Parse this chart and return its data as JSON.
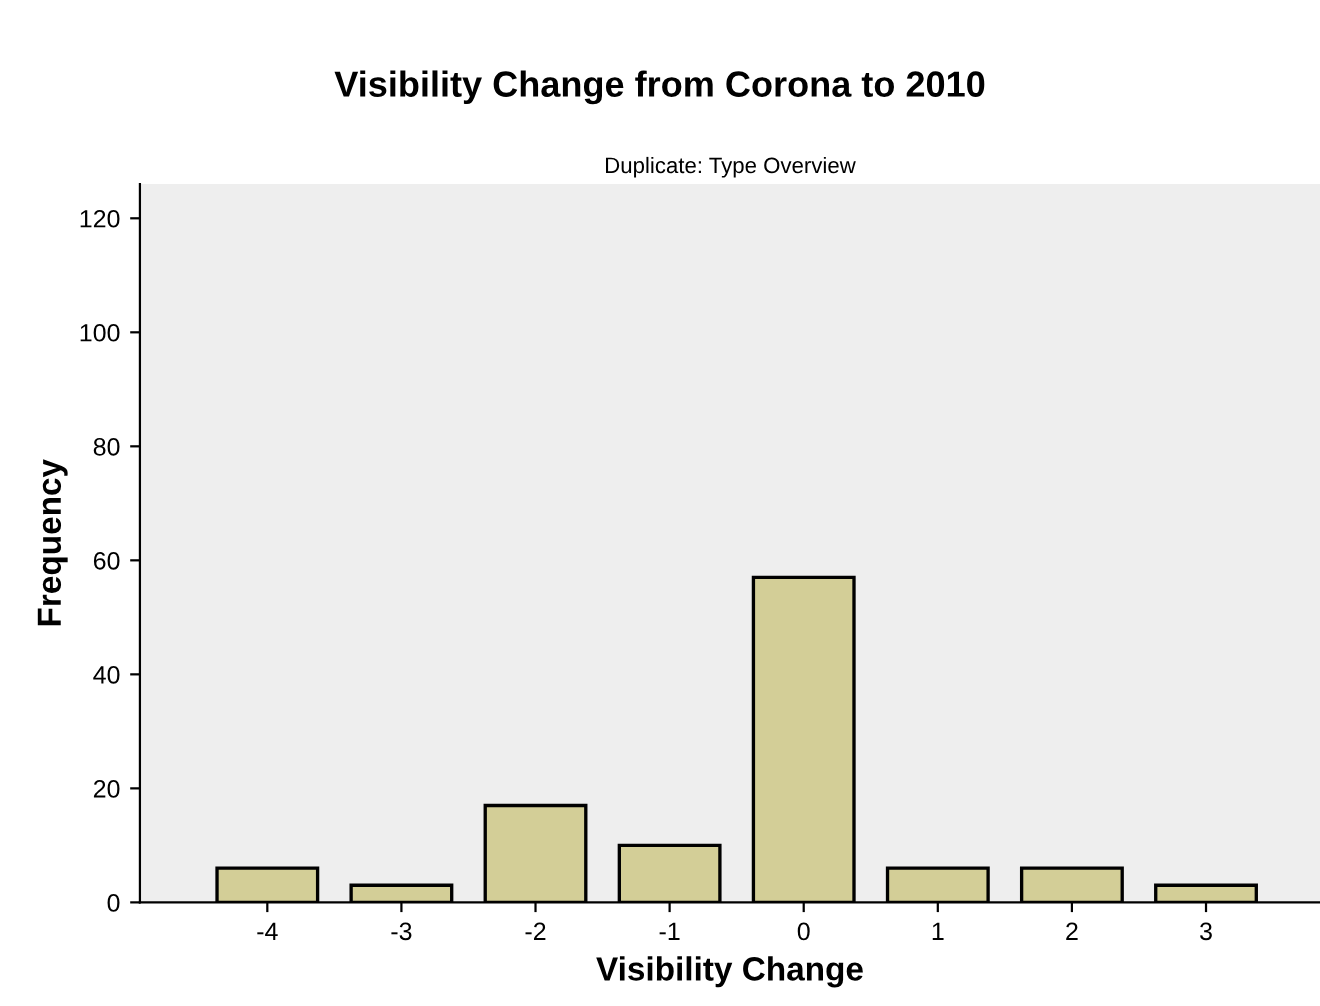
{
  "chart_data": {
    "type": "bar",
    "title": "Visibility Change from Corona to 2010",
    "subtitle": "Duplicate: Type Overview",
    "xlabel": "Visibility Change",
    "ylabel": "Frequency",
    "categories": [
      "-4",
      "-3",
      "-2",
      "-1",
      "0",
      "1",
      "2",
      "3"
    ],
    "values": [
      6,
      3,
      17,
      10,
      57,
      6,
      6,
      3
    ],
    "color": "#d3ce97",
    "ylim": [
      0,
      126
    ],
    "yticks": [
      0,
      20,
      40,
      60,
      80,
      100,
      120
    ],
    "grid": false,
    "legend": false
  }
}
